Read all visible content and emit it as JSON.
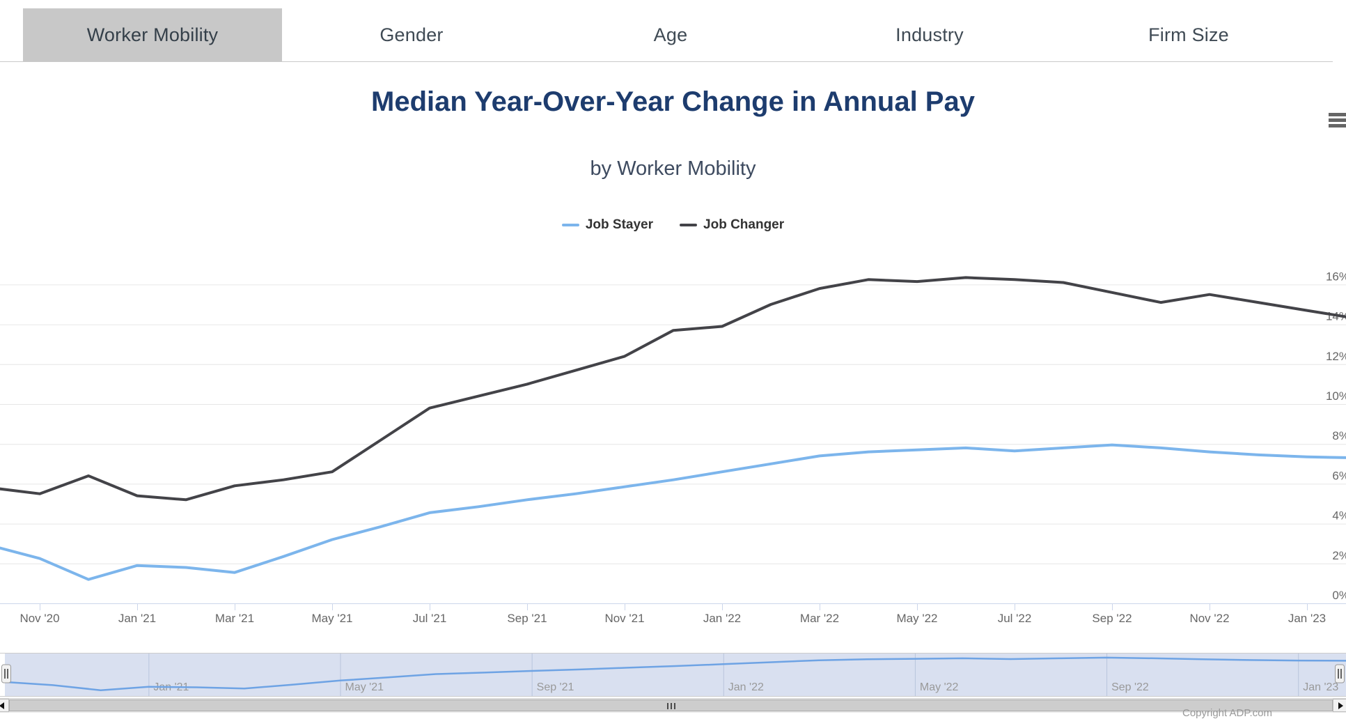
{
  "tabs": {
    "items": [
      {
        "label": "Worker Mobility",
        "active": true
      },
      {
        "label": "Gender",
        "active": false
      },
      {
        "label": "Age",
        "active": false
      },
      {
        "label": "Industry",
        "active": false
      },
      {
        "label": "Firm Size",
        "active": false
      }
    ]
  },
  "header": {
    "title": "Median Year-Over-Year Change in Annual Pay",
    "subtitle": "by Worker Mobility"
  },
  "footer": {
    "copyright": "Copyright ADP.com"
  },
  "colors": {
    "job_stayer": "#7cb5ec",
    "job_changer": "#434348",
    "title": "#1d3c6e",
    "gridline": "#e6e6e6",
    "axis_line": "#ccd6eb",
    "axis_label": "#666666",
    "navigator_mask": "rgba(102,133,194,0.25)",
    "navigator_label": "#999999",
    "active_tab_bg": "#c8c8c8"
  },
  "chart_data": {
    "type": "line",
    "title": "Median Year-Over-Year Change in Annual Pay",
    "subtitle": "by Worker Mobility",
    "xlabel": "",
    "ylabel": "",
    "ylim": [
      0,
      17.3
    ],
    "grid": "horizontal",
    "legend_position": "top-center",
    "x": [
      "Oct '20",
      "Nov '20",
      "Dec '20",
      "Jan '21",
      "Feb '21",
      "Mar '21",
      "Apr '21",
      "May '21",
      "Jun '21",
      "Jul '21",
      "Aug '21",
      "Sep '21",
      "Oct '21",
      "Nov '21",
      "Dec '21",
      "Jan '22",
      "Feb '22",
      "Mar '22",
      "Apr '22",
      "May '22",
      "Jun '22",
      "Jul '22",
      "Aug '22",
      "Sep '22",
      "Oct '22",
      "Nov '22",
      "Dec '22",
      "Jan '23",
      "Feb '23"
    ],
    "series": [
      {
        "name": "Job Stayer",
        "color": "#7cb5ec",
        "values": [
          2.9,
          2.25,
          1.2,
          1.9,
          1.8,
          1.55,
          2.35,
          3.2,
          3.85,
          4.55,
          4.85,
          5.2,
          5.5,
          5.85,
          6.2,
          6.6,
          7.0,
          7.4,
          7.6,
          7.7,
          7.8,
          7.65,
          7.8,
          7.95,
          7.8,
          7.6,
          7.45,
          7.35,
          7.3
        ]
      },
      {
        "name": "Job Changer",
        "color": "#434348",
        "values": [
          5.8,
          5.5,
          6.4,
          5.4,
          5.2,
          5.9,
          6.2,
          6.6,
          8.2,
          9.8,
          10.4,
          11.0,
          11.7,
          12.4,
          13.7,
          13.9,
          15.0,
          15.8,
          16.25,
          16.15,
          16.35,
          16.25,
          16.1,
          15.6,
          15.1,
          15.5,
          15.1,
          14.7,
          14.3
        ]
      }
    ],
    "x_tick_labels": [
      "Nov '20",
      "Jan '21",
      "Mar '21",
      "May '21",
      "Jul '21",
      "Sep '21",
      "Nov '21",
      "Jan '22",
      "Mar '22",
      "May '22",
      "Jul '22",
      "Sep '22",
      "Nov '22",
      "Jan '23"
    ],
    "y_tick_labels": [
      "0%",
      "2%",
      "4%",
      "6%",
      "8%",
      "10%",
      "12%",
      "14%",
      "16%"
    ],
    "y_tick_values": [
      0,
      2,
      4,
      6,
      8,
      10,
      12,
      14,
      16
    ],
    "navigator": {
      "labels": [
        "Jan '21",
        "May '21",
        "Sep '21",
        "Jan '22",
        "May '22",
        "Sep '22",
        "Jan '23"
      ],
      "series_shown": "Job Stayer"
    }
  }
}
